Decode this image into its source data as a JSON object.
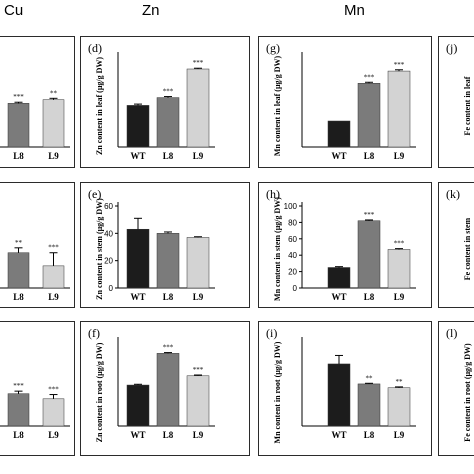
{
  "column_headers": [
    "Cu",
    "Zn",
    "Mn"
  ],
  "colors": {
    "WT": "#1c1c1c",
    "L8": "#7b7b7b",
    "L9": "#d3d3d3",
    "frame": "#2b2b2b"
  },
  "chart_data": [
    {
      "panel": "cu_leaf",
      "type": "bar",
      "categories": [
        "L8",
        "L9"
      ],
      "values": [
        48,
        52
      ],
      "errors": [
        1.2,
        1.5
      ],
      "sig": [
        "***",
        "**"
      ],
      "ylim": [
        0,
        100
      ],
      "yticks": [],
      "panel_label": "",
      "ylabel": ""
    },
    {
      "panel": "zn_leaf",
      "type": "bar",
      "categories": [
        "WT",
        "L8",
        "L9"
      ],
      "values": [
        32,
        38,
        60
      ],
      "errors": [
        1.0,
        0.8,
        0.6
      ],
      "sig": [
        "",
        "***",
        "***"
      ],
      "ylim": [
        0,
        70
      ],
      "yticks": [],
      "panel_label": "(d)",
      "ylabel": "Zn content in leaf (μg/g DW)"
    },
    {
      "panel": "mn_leaf",
      "type": "bar",
      "categories": [
        "WT",
        "L8",
        "L9"
      ],
      "values": [
        100,
        245,
        292
      ],
      "errors": [
        0,
        4,
        5
      ],
      "sig": [
        "",
        "***",
        "***"
      ],
      "ylim": [
        0,
        350
      ],
      "yticks": [],
      "panel_label": "(g)",
      "ylabel": "Mn content in leaf (μg/g DW)"
    },
    {
      "panel": "fe_leaf",
      "type": "bar",
      "categories": [],
      "values": [],
      "ylim": [
        0,
        1
      ],
      "yticks": [],
      "panel_label": "(j)",
      "ylabel": "Fe content in leaf"
    },
    {
      "panel": "cu_stem",
      "type": "bar",
      "categories": [
        "L8",
        "L9"
      ],
      "values": [
        43,
        27
      ],
      "errors": [
        6,
        16
      ],
      "sig": [
        "**",
        "***"
      ],
      "ylim": [
        0,
        100
      ],
      "yticks": [],
      "panel_label": "",
      "ylabel": ""
    },
    {
      "panel": "zn_stem",
      "type": "bar",
      "categories": [
        "WT",
        "L8",
        "L9"
      ],
      "values": [
        43,
        40,
        37
      ],
      "errors": [
        8,
        1,
        0.5
      ],
      "sig": [
        "",
        "",
        ""
      ],
      "ylim": [
        0,
        60
      ],
      "yticks": [
        "0",
        "20",
        "40",
        "60"
      ],
      "panel_label": "(e)",
      "ylabel": "Zn content in stem (μg/g DW)"
    },
    {
      "panel": "mn_stem",
      "type": "bar",
      "categories": [
        "WT",
        "L8",
        "L9"
      ],
      "values": [
        25,
        82,
        47
      ],
      "errors": [
        1,
        1,
        1
      ],
      "sig": [
        "",
        "***",
        "***"
      ],
      "ylim": [
        0,
        100
      ],
      "yticks": [
        "0",
        "20",
        "40",
        "60",
        "80",
        "100"
      ],
      "panel_label": "(h)",
      "ylabel": "Mn content in stem (μg/g DW)"
    },
    {
      "panel": "fe_stem",
      "type": "bar",
      "categories": [],
      "values": [],
      "ylim": [
        0,
        1
      ],
      "yticks": [],
      "panel_label": "(k)",
      "ylabel": "Fe content in stem"
    },
    {
      "panel": "cu_root",
      "type": "bar",
      "categories": [
        "L8",
        "L9"
      ],
      "values": [
        38,
        32
      ],
      "errors": [
        3,
        5
      ],
      "sig": [
        "***",
        "***"
      ],
      "ylim": [
        0,
        100
      ],
      "yticks": [],
      "panel_label": "",
      "ylabel": ""
    },
    {
      "panel": "zn_root",
      "type": "bar",
      "categories": [
        "WT",
        "L8",
        "L9"
      ],
      "values": [
        53,
        94,
        65
      ],
      "errors": [
        1,
        1,
        1
      ],
      "sig": [
        "",
        "***",
        "***"
      ],
      "ylim": [
        0,
        110
      ],
      "yticks": [],
      "panel_label": "(f)",
      "ylabel": "Zn content in root (μg/g DW)"
    },
    {
      "panel": "mn_root",
      "type": "bar",
      "categories": [
        "WT",
        "L8",
        "L9"
      ],
      "values": [
        292,
        198,
        180
      ],
      "errors": [
        40,
        3,
        4
      ],
      "sig": [
        "",
        "**",
        "**"
      ],
      "ylim": [
        0,
        400
      ],
      "yticks": [],
      "panel_label": "(i)",
      "ylabel": "Mn content in root (μg/g DW)"
    },
    {
      "panel": "fe_root",
      "type": "bar",
      "categories": [],
      "values": [],
      "ylim": [
        0,
        1
      ],
      "yticks": [],
      "panel_label": "(l)",
      "ylabel": "Fe content in root (μg/g DW)"
    }
  ]
}
